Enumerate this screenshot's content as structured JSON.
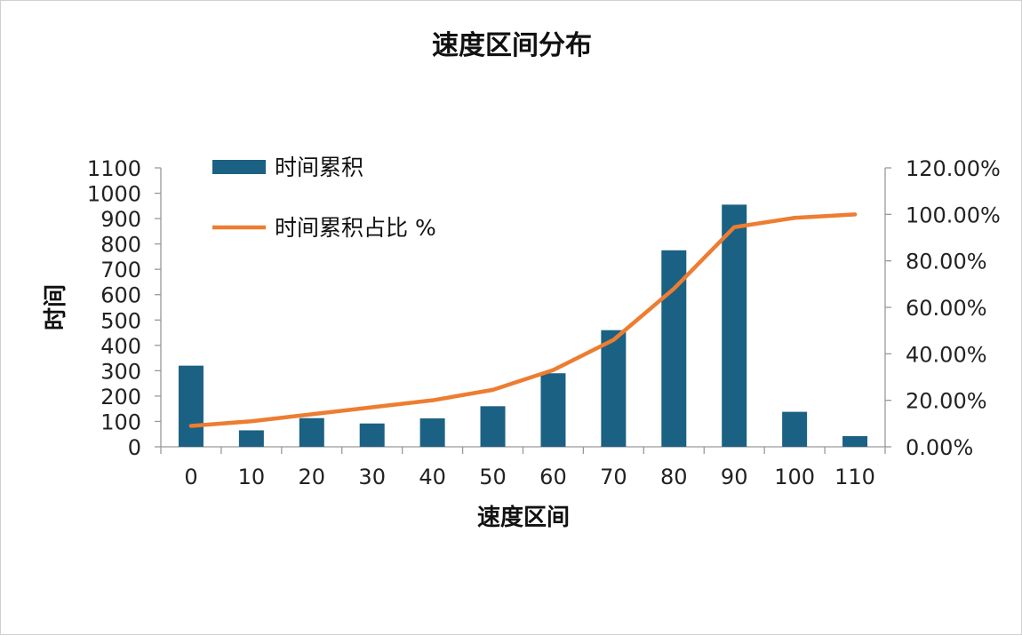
{
  "chart_data": {
    "type": "bar",
    "title": "速度区间分布",
    "xlabel": "速度区间",
    "ylabel": "时间",
    "categories": [
      "0",
      "10",
      "20",
      "30",
      "40",
      "50",
      "60",
      "70",
      "80",
      "90",
      "100",
      "110"
    ],
    "series": [
      {
        "name": "时间累积",
        "type": "bar",
        "axis": "left",
        "color": "#1b6183",
        "values": [
          320,
          65,
          113,
          92,
          112,
          160,
          290,
          460,
          775,
          955,
          138,
          42
        ]
      },
      {
        "name": "时间累积占比 %",
        "type": "line",
        "axis": "right",
        "color": "#ed7d31",
        "values": [
          0.09,
          0.11,
          0.14,
          0.17,
          0.2,
          0.245,
          0.33,
          0.46,
          0.68,
          0.945,
          0.985,
          1.0
        ]
      }
    ],
    "ylim": [
      0,
      1100
    ],
    "y_ticks": [
      "0",
      "100",
      "200",
      "300",
      "400",
      "500",
      "600",
      "700",
      "800",
      "900",
      "1000",
      "1100"
    ],
    "y2lim": [
      0,
      1.2
    ],
    "y2_ticks": [
      "0.00%",
      "20.00%",
      "40.00%",
      "60.00%",
      "80.00%",
      "100.00%",
      "120.00%"
    ],
    "grid": false,
    "legend_position": "top-left"
  }
}
